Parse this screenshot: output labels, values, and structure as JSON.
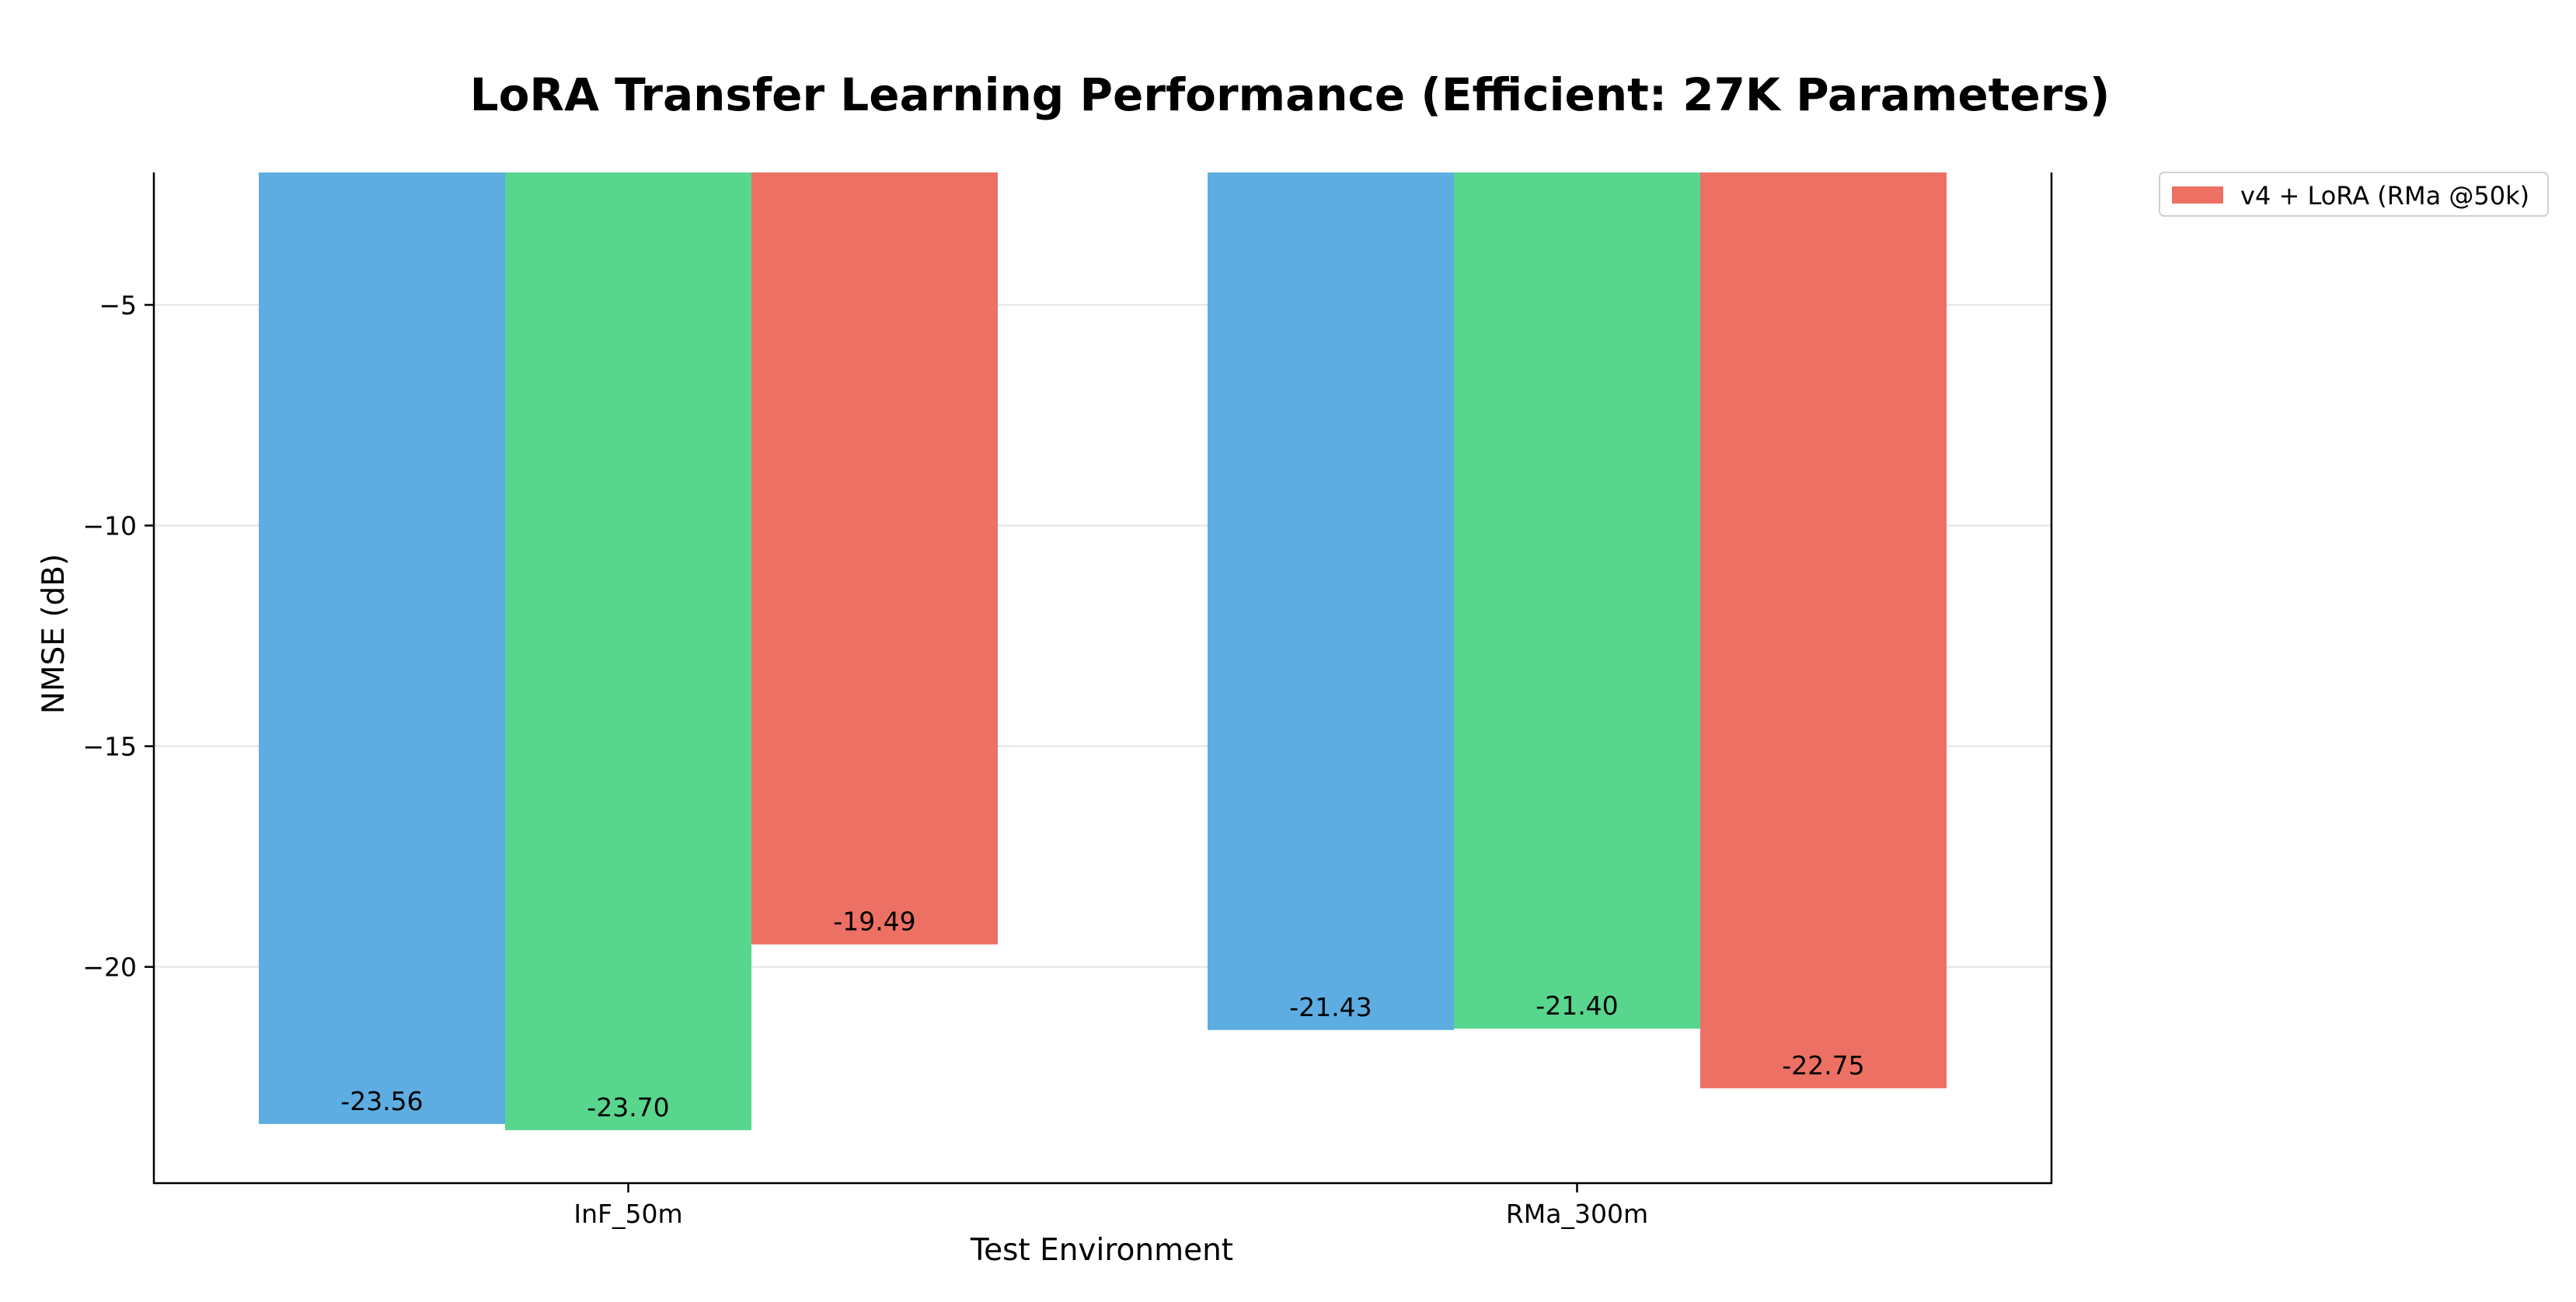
{
  "chart_data": {
    "type": "bar",
    "title": "LoRA Transfer Learning Performance (Efficient: 27K Parameters)",
    "xlabel": "Test Environment",
    "ylabel": "NMSE (dB)",
    "categories": [
      "InF_50m",
      "RMa_300m"
    ],
    "ylim": [
      -24.9,
      -2.0
    ],
    "yticks": [
      -5,
      -10,
      -15,
      -20
    ],
    "ytick_labels": [
      "−5",
      "−10",
      "−15",
      "−20"
    ],
    "grid": true,
    "legend_position": "outside-top-right",
    "series": [
      {
        "values": [
          -23.56,
          -21.43
        ],
        "labels": [
          "-23.56",
          "-21.43"
        ],
        "color": "#5dade2"
      },
      {
        "values": [
          -23.7,
          -21.4
        ],
        "labels": [
          "-23.70",
          "-21.40"
        ],
        "color": "#58d68d"
      },
      {
        "name": "v4 + LoRA (RMa @50k)",
        "values": [
          -19.49,
          -22.75
        ],
        "labels": [
          "-19.49",
          "-22.75"
        ],
        "color": "#ec7063"
      }
    ]
  }
}
